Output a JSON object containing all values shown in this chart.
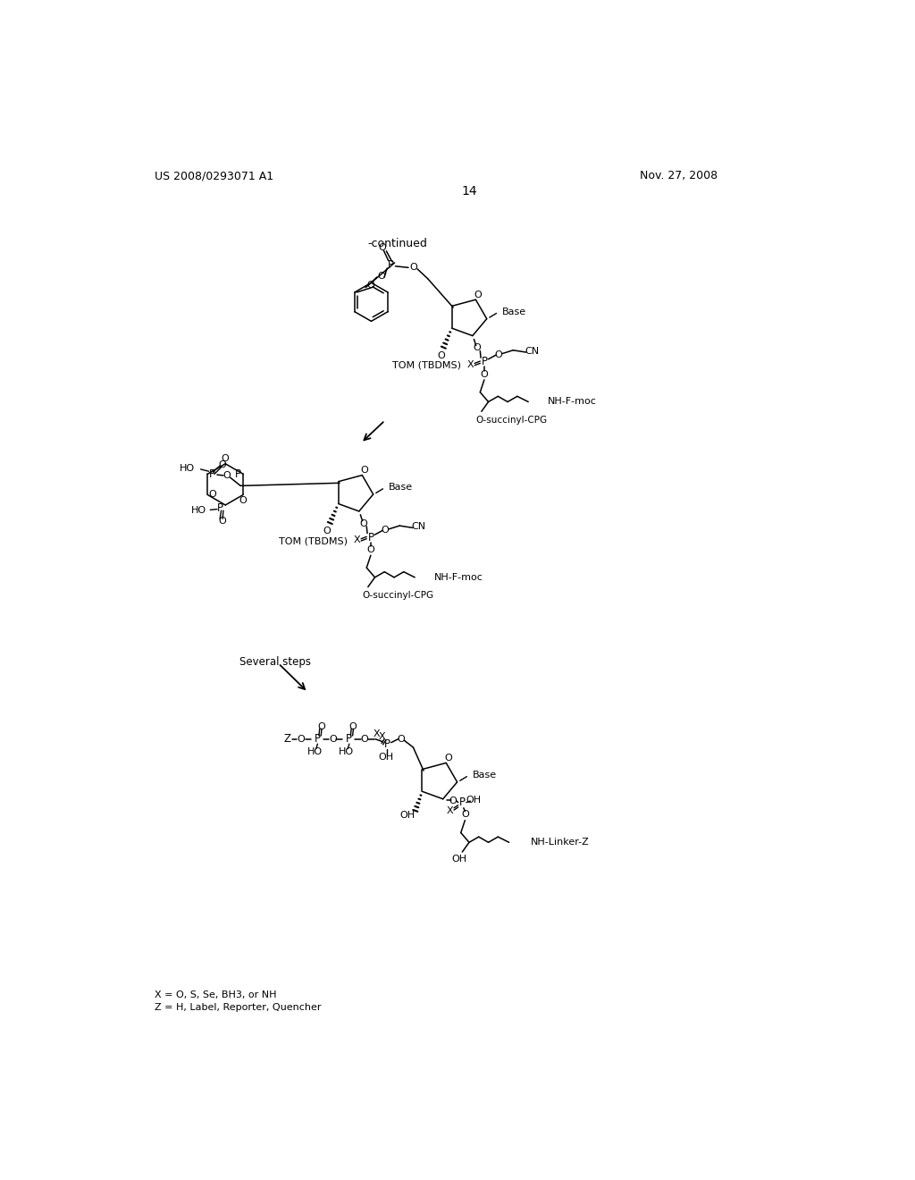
{
  "page_header_left": "US 2008/0293071 A1",
  "page_header_right": "Nov. 27, 2008",
  "page_number": "14",
  "continued_label": "-continued",
  "footnote_line1": "X = O, S, Se, BH3, or NH",
  "footnote_line2": "Z = H, Label, Reporter, Quencher"
}
